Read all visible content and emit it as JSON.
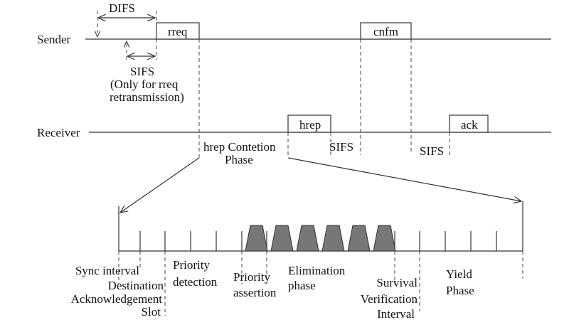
{
  "timeline": {
    "sender_label": "Sender",
    "receiver_label": "Receiver",
    "difs_label": "DIFS",
    "sifs_sender_label": "SIFS",
    "sifs_note_line1": "(Only for rreq",
    "sifs_note_line2": "retransmission)",
    "frames": {
      "rreq": "rreq",
      "cnfm": "cnfm",
      "hrep": "hrep",
      "ack": "ack"
    },
    "sifs_after_hrep": "SIFS",
    "sifs_before_ack": "SIFS",
    "contention_line1": "hrep Contetion",
    "contention_line2": "Phase"
  },
  "phases": {
    "sync": "Sync interval",
    "dest_line1": "Destination",
    "dest_line2": "Acknowledgement",
    "dest_line3": "Slot",
    "detect_line1": "Priority",
    "detect_line2": "detection",
    "assert_line1": "Priority",
    "assert_line2": "assertion",
    "elim_line1": "Elimination",
    "elim_line2": "phase",
    "surv_line1": "Survival",
    "surv_line2": "Verification",
    "surv_line3": "Interval",
    "yield_line1": "Yield",
    "yield_line2": "Phase"
  },
  "colors": {
    "burst_fill": "#777777",
    "line": "#333333"
  }
}
